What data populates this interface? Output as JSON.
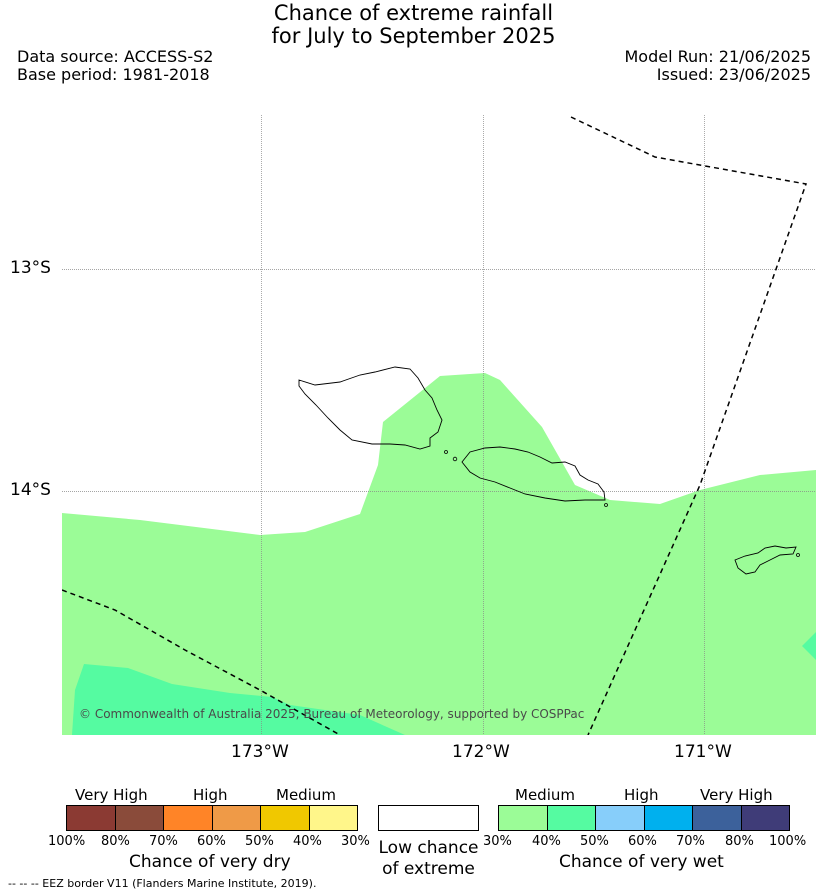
{
  "title": {
    "line1": "Chance of extreme rainfall",
    "line2": "for July to September 2025"
  },
  "info": {
    "data_source": "Data source: ACCESS-S2",
    "base_period": "Base period: 1981-2018",
    "model_run": "Model Run: 21/06/2025",
    "issued": "Issued: 23/06/2025"
  },
  "map": {
    "latitude_labels": [
      "13°S",
      "14°S"
    ],
    "longitude_labels": [
      "173°W",
      "172°W",
      "171°W"
    ],
    "copyright": "© Commonwealth of Australia 2025, Bureau of Meteorology, supported by COSPPac",
    "colors": {
      "wet_medium_30_40": "#9bfc97",
      "wet_medium_40_50": "#55fba1",
      "eez_line": "#000000",
      "coastline": "#000000"
    }
  },
  "legend": {
    "dry": {
      "categories": [
        "Very High",
        "High",
        "Medium"
      ],
      "ticks": [
        "100%",
        "80%",
        "70%",
        "60%",
        "50%",
        "40%",
        "30%"
      ],
      "caption": "Chance of very dry",
      "colors": [
        "#8b3a33",
        "#8a4b3a",
        "#ff8427",
        "#ef9a47",
        "#f0c800",
        "#fff68a"
      ]
    },
    "low": {
      "caption_line1": "Low chance",
      "caption_line2": "of extreme",
      "color": "#ffffff"
    },
    "wet": {
      "categories": [
        "Medium",
        "High",
        "Very High"
      ],
      "ticks": [
        "30%",
        "40%",
        "50%",
        "60%",
        "70%",
        "80%",
        "100%"
      ],
      "caption": "Chance of very wet",
      "colors": [
        "#9bfc97",
        "#55fba1",
        "#87cefa",
        "#00b0ee",
        "#3c619b",
        "#3f3c78"
      ]
    }
  },
  "footer": {
    "eez_note": "--  --  -- EEZ border V11 (Flanders Marine Institute, 2019)."
  }
}
